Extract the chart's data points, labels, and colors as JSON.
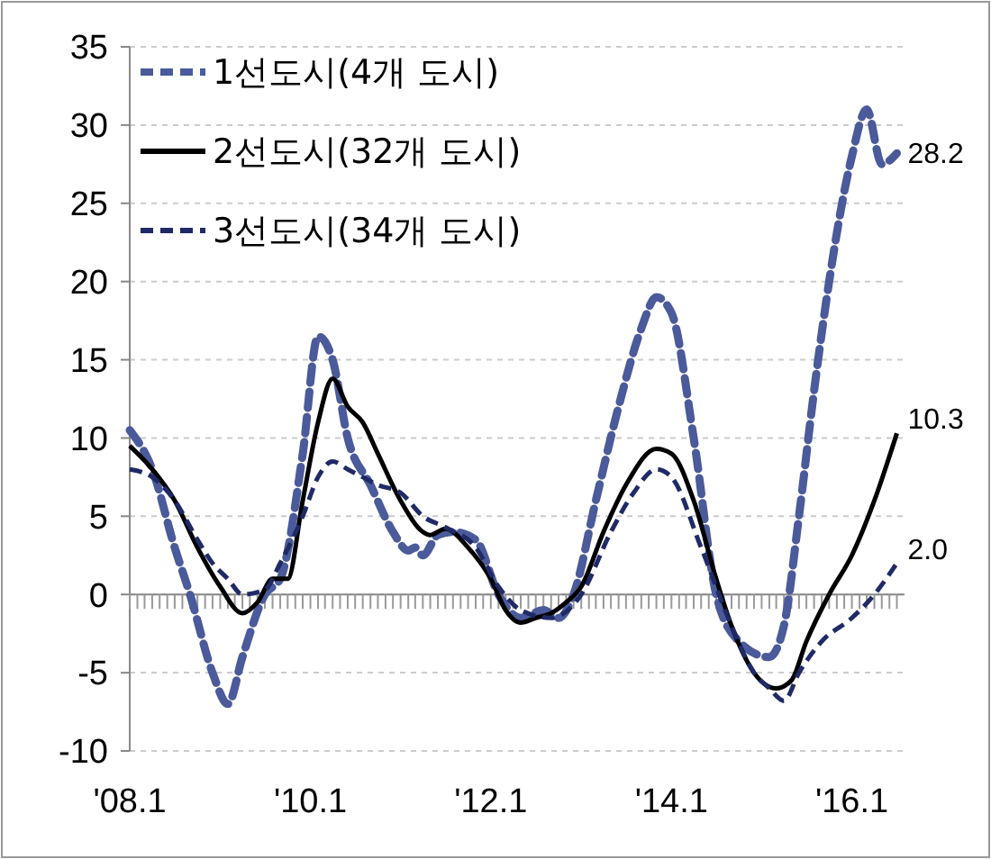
{
  "chart_data": {
    "type": "line",
    "xlim": [
      "2008-01",
      "2016-08"
    ],
    "xticks": [
      {
        "value": "2008-01",
        "label": "'08.1"
      },
      {
        "value": "2010-01",
        "label": "'10.1"
      },
      {
        "value": "2012-01",
        "label": "'12.1"
      },
      {
        "value": "2014-01",
        "label": "'14.1"
      },
      {
        "value": "2016-01",
        "label": "'16.1"
      }
    ],
    "ylim": [
      -10,
      35
    ],
    "yticks": [
      -10,
      -5,
      0,
      5,
      10,
      15,
      20,
      25,
      30,
      35
    ],
    "grid": "y",
    "legend": "top left",
    "marker": "none",
    "series": [
      {
        "name": "1선도시(4개 도시)",
        "color": "#4a5a9a",
        "line_style": "dashed",
        "x": [
          "2008-01",
          "2008-04",
          "2008-07",
          "2008-09",
          "2008-12",
          "2009-02",
          "2009-04",
          "2009-07",
          "2009-09",
          "2009-12",
          "2010-02",
          "2010-04",
          "2010-06",
          "2010-09",
          "2010-12",
          "2011-02",
          "2011-03",
          "2011-04",
          "2011-06",
          "2011-08",
          "2011-11",
          "2012-02",
          "2012-05",
          "2012-08",
          "2012-10",
          "2012-12",
          "2013-03",
          "2013-06",
          "2013-09",
          "2013-11",
          "2014-01",
          "2014-04",
          "2014-07",
          "2014-10",
          "2015-02",
          "2015-04",
          "2015-06",
          "2015-08",
          "2015-10",
          "2016-01",
          "2016-03",
          "2016-05",
          "2016-07"
        ],
        "values": [
          10.5,
          8,
          3,
          0,
          -5,
          -7,
          -4,
          0,
          1,
          9,
          16.5,
          15,
          10,
          7,
          4,
          2.8,
          3,
          2.5,
          3.8,
          4,
          3.5,
          0,
          -1.5,
          -1,
          -1.5,
          0,
          6,
          12,
          17,
          19,
          18,
          10,
          0,
          -3,
          -4,
          -2,
          5,
          13,
          20,
          28,
          31,
          27.5,
          28.2
        ]
      },
      {
        "name": "2선도시(32개 도시)",
        "color": "#000000",
        "line_style": "solid",
        "x": [
          "2008-01",
          "2008-04",
          "2008-07",
          "2008-10",
          "2009-01",
          "2009-04",
          "2009-06",
          "2009-08",
          "2009-10",
          "2009-12",
          "2010-02",
          "2010-04",
          "2010-06",
          "2010-08",
          "2010-10",
          "2011-01",
          "2011-04",
          "2011-05",
          "2011-07",
          "2011-10",
          "2012-01",
          "2012-03",
          "2012-05",
          "2012-07",
          "2012-09",
          "2012-11",
          "2013-01",
          "2013-04",
          "2013-07",
          "2013-11",
          "2014-01",
          "2014-04",
          "2014-07",
          "2014-09",
          "2014-12",
          "2015-03",
          "2015-05",
          "2015-07",
          "2015-10",
          "2016-01",
          "2016-04",
          "2016-07"
        ],
        "values": [
          9.5,
          8,
          6,
          3,
          0.5,
          -1.2,
          -0.5,
          1,
          1,
          6,
          11,
          13.8,
          12,
          11,
          9,
          6,
          4,
          3.8,
          4.2,
          3,
          1,
          -1,
          -1.8,
          -1.5,
          -1.2,
          -0.5,
          0.5,
          4,
          7,
          9.3,
          9,
          6,
          1,
          -2,
          -5,
          -6,
          -5.5,
          -3,
          0,
          2.5,
          6,
          10.3
        ]
      },
      {
        "name": "3선도시(34개 도시)",
        "color": "#1f2a66",
        "line_style": "dashed",
        "x": [
          "2008-01",
          "2008-04",
          "2008-07",
          "2008-10",
          "2008-12",
          "2009-02",
          "2009-04",
          "2009-07",
          "2009-09",
          "2009-12",
          "2010-02",
          "2010-04",
          "2010-06",
          "2010-08",
          "2010-10",
          "2011-01",
          "2011-04",
          "2011-07",
          "2011-11",
          "2012-02",
          "2012-05",
          "2012-09",
          "2013-01",
          "2013-05",
          "2013-08",
          "2013-11",
          "2014-01",
          "2014-05",
          "2014-09",
          "2014-12",
          "2015-02",
          "2015-04",
          "2015-06",
          "2015-09",
          "2016-01",
          "2016-04",
          "2016-07"
        ],
        "values": [
          8,
          7.5,
          6,
          3.5,
          2,
          1,
          0,
          0.3,
          2,
          5,
          7.5,
          8.5,
          8,
          7.5,
          7,
          6.5,
          5,
          4.3,
          3,
          0.5,
          -1,
          -1.5,
          0,
          4,
          6.5,
          8,
          7.5,
          3,
          -2,
          -5,
          -6,
          -6.8,
          -5,
          -3,
          -1.5,
          0,
          2.0
        ]
      }
    ],
    "annotations": [
      {
        "text": "28.2",
        "x": "2016-07",
        "y": 28.2
      },
      {
        "text": "10.3",
        "x": "2016-07",
        "y": 10.3
      },
      {
        "text": "2.0",
        "x": "2016-07",
        "y": 2.0
      }
    ]
  }
}
